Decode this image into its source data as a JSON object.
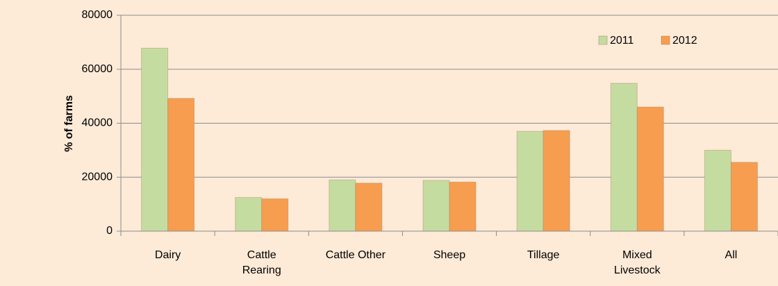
{
  "chart_data": {
    "type": "bar",
    "y_label": "% of farms",
    "categories": [
      "Dairy",
      "Cattle Rearing",
      "Cattle Other",
      "Sheep",
      "Tillage",
      "Mixed Livestock",
      "All"
    ],
    "series": [
      {
        "name": "2011",
        "color": "#c5dca1",
        "values": [
          67800,
          12500,
          19000,
          18800,
          37000,
          54800,
          30000
        ]
      },
      {
        "name": "2012",
        "color": "#f79d4f",
        "values": [
          49200,
          12000,
          17800,
          18200,
          37300,
          46000,
          25500
        ]
      }
    ],
    "ylim": [
      0,
      80000
    ],
    "yticks": [
      0,
      20000,
      40000,
      60000,
      80000
    ],
    "grid": true,
    "legend": "top-right"
  }
}
